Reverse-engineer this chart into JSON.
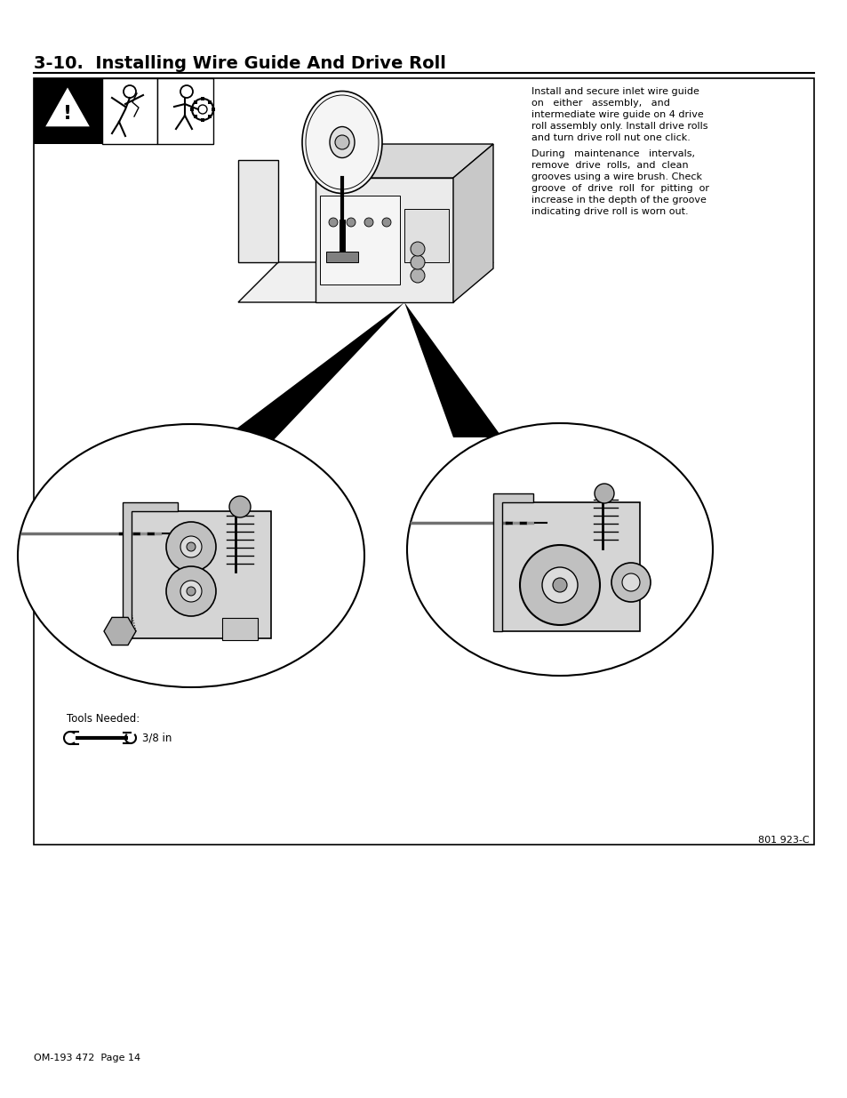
{
  "title": "3-10.  Installing Wire Guide And Drive Roll",
  "footer_left": "OM-193 472  Page 14",
  "footer_right": "801 923-C",
  "bg_color": "#ffffff",
  "border_color": "#000000",
  "text_color": "#000000",
  "paragraph1_lines": [
    "Install and secure inlet wire guide",
    "on   either   assembly,   and",
    "intermediate wire guide on 4 drive",
    "roll assembly only. Install drive rolls",
    "and turn drive roll nut one click."
  ],
  "paragraph2_lines": [
    "During   maintenance   intervals,",
    "remove  drive  rolls,  and  clean",
    "grooves using a wire brush. Check",
    "groove  of  drive  roll  for  pitting  or",
    "increase in the depth of the groove",
    "indicating drive roll is worn out."
  ],
  "tools_label": "Tools Needed:",
  "tools_size": "3/8 in",
  "title_fontsize": 14,
  "body_fontsize": 8.0,
  "footer_fontsize": 8,
  "tools_fontsize": 8.5
}
